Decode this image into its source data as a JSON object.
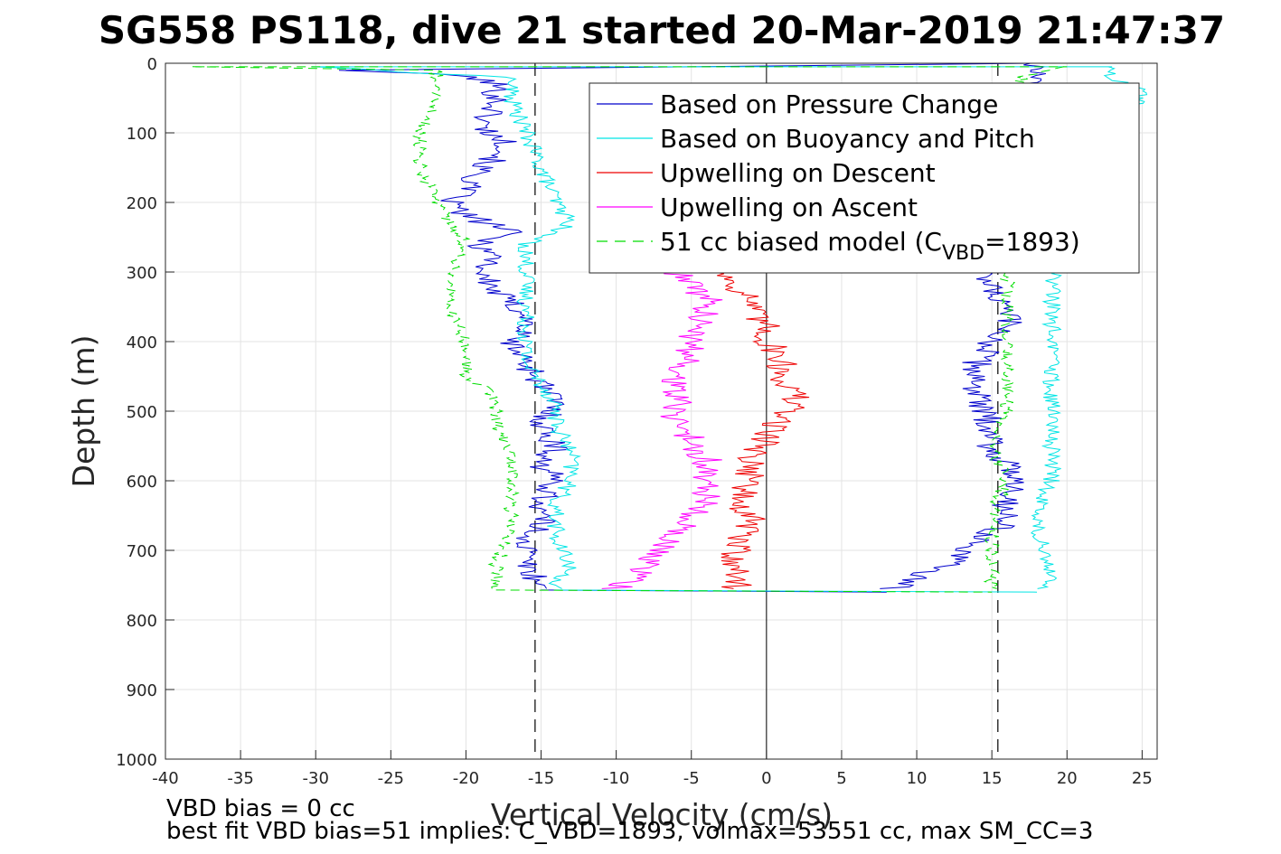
{
  "chart_data": {
    "type": "line",
    "title": "SG558 PS118, dive 21 started 20-Mar-2019 21:47:37",
    "xlabel": "Vertical Velocity (cm/s)",
    "ylabel": "Depth (m)",
    "xlim": [
      -40,
      26
    ],
    "ylim": [
      0,
      1000
    ],
    "y_reversed": true,
    "grid": true,
    "xticks": [
      "-40",
      "-35",
      "-30",
      "-25",
      "-20",
      "-15",
      "-10",
      "-5",
      "0",
      "5",
      "10",
      "15",
      "20",
      "25"
    ],
    "yticks": [
      "0",
      "100",
      "200",
      "300",
      "400",
      "500",
      "600",
      "700",
      "800",
      "900",
      "1000"
    ],
    "legend_position": "top-right",
    "reference_lines": {
      "x": [
        -15.4,
        15.4
      ],
      "zero": 0
    },
    "series": [
      {
        "name": "Based on Pressure Change",
        "color": "#0000cc",
        "style": "solid",
        "descent": [
          [
            -28,
            10
          ],
          [
            -20,
            18
          ],
          [
            -18,
            30
          ],
          [
            -18,
            60
          ],
          [
            -19,
            90
          ],
          [
            -17,
            120
          ],
          [
            -19,
            150
          ],
          [
            -20,
            180
          ],
          [
            -21,
            200
          ],
          [
            -20,
            220
          ],
          [
            -17,
            240
          ],
          [
            -19,
            260
          ],
          [
            -18,
            280
          ],
          [
            -19,
            300
          ],
          [
            -18,
            330
          ],
          [
            -16,
            360
          ],
          [
            -16,
            380
          ],
          [
            -17,
            400
          ],
          [
            -16,
            430
          ],
          [
            -15,
            460
          ],
          [
            -14,
            490
          ],
          [
            -15,
            520
          ],
          [
            -14,
            550
          ],
          [
            -15,
            580
          ],
          [
            -14,
            600
          ],
          [
            -15,
            630
          ],
          [
            -15,
            660
          ],
          [
            -16,
            690
          ],
          [
            -16,
            720
          ],
          [
            -15,
            750
          ],
          [
            -15,
            757
          ]
        ],
        "ascent": [
          [
            18,
            0
          ],
          [
            14,
            300
          ],
          [
            15,
            330
          ],
          [
            16,
            360
          ],
          [
            16,
            380
          ],
          [
            15,
            400
          ],
          [
            14,
            430
          ],
          [
            14,
            460
          ],
          [
            14,
            490
          ],
          [
            15,
            520
          ],
          [
            15,
            550
          ],
          [
            16,
            580
          ],
          [
            17,
            600
          ],
          [
            16,
            630
          ],
          [
            16,
            660
          ],
          [
            13,
            700
          ],
          [
            12,
            720
          ],
          [
            10,
            740
          ],
          [
            8,
            757
          ]
        ]
      },
      {
        "name": "Based on Buoyancy and Pitch",
        "color": "#00e5e5",
        "style": "solid",
        "descent": [
          [
            -30,
            5
          ],
          [
            -22,
            15
          ],
          [
            -17,
            20
          ],
          [
            -17,
            50
          ],
          [
            -16,
            100
          ],
          [
            -15,
            150
          ],
          [
            -14,
            200
          ],
          [
            -13,
            230
          ],
          [
            -16,
            260
          ],
          [
            -16,
            300
          ],
          [
            -16,
            330
          ],
          [
            -16,
            360
          ],
          [
            -16,
            400
          ],
          [
            -16,
            430
          ],
          [
            -15,
            460
          ],
          [
            -14,
            490
          ],
          [
            -14,
            520
          ],
          [
            -13,
            560
          ],
          [
            -13,
            600
          ],
          [
            -14,
            630
          ],
          [
            -14,
            660
          ],
          [
            -14,
            690
          ],
          [
            -13,
            720
          ],
          [
            -14,
            750
          ],
          [
            -14,
            757
          ]
        ],
        "ascent": [
          [
            23,
            5
          ],
          [
            23,
            20
          ],
          [
            25,
            40
          ],
          [
            19,
            300
          ],
          [
            19,
            350
          ],
          [
            19,
            400
          ],
          [
            19,
            450
          ],
          [
            19,
            500
          ],
          [
            19,
            550
          ],
          [
            19,
            600
          ],
          [
            18,
            640
          ],
          [
            18,
            680
          ],
          [
            19,
            720
          ],
          [
            19,
            740
          ],
          [
            18,
            757
          ]
        ]
      },
      {
        "name": "Upwelling on Descent",
        "color": "#ee0000",
        "style": "solid",
        "points": [
          [
            -3,
            300
          ],
          [
            -2,
            320
          ],
          [
            -1,
            340
          ],
          [
            -1,
            360
          ],
          [
            0,
            380
          ],
          [
            0,
            400
          ],
          [
            1,
            420
          ],
          [
            1,
            450
          ],
          [
            2,
            480
          ],
          [
            1,
            510
          ],
          [
            0,
            540
          ],
          [
            -1,
            570
          ],
          [
            -1,
            600
          ],
          [
            -2,
            630
          ],
          [
            -1,
            660
          ],
          [
            -2,
            690
          ],
          [
            -2,
            720
          ],
          [
            -2,
            750
          ],
          [
            -3,
            757
          ]
        ]
      },
      {
        "name": "Upwelling on Ascent",
        "color": "#ff00ff",
        "style": "solid",
        "points": [
          [
            -6,
            300
          ],
          [
            -5,
            320
          ],
          [
            -4,
            340
          ],
          [
            -4,
            360
          ],
          [
            -5,
            380
          ],
          [
            -5,
            400
          ],
          [
            -5,
            420
          ],
          [
            -6,
            450
          ],
          [
            -6,
            480
          ],
          [
            -6,
            510
          ],
          [
            -5,
            540
          ],
          [
            -4,
            570
          ],
          [
            -4,
            600
          ],
          [
            -4,
            630
          ],
          [
            -5,
            660
          ],
          [
            -7,
            690
          ],
          [
            -8,
            720
          ],
          [
            -9,
            740
          ],
          [
            -10,
            757
          ]
        ]
      },
      {
        "name": "51 cc biased model (C_VBD=1893)",
        "legend_main": "51 cc biased model (C",
        "legend_sub": "VBD",
        "legend_tail": "=1893)",
        "color": "#00dd00",
        "style": "dashed",
        "descent": [
          [
            -38,
            5
          ],
          [
            -22,
            10
          ],
          [
            -22,
            50
          ],
          [
            -23,
            100
          ],
          [
            -23,
            150
          ],
          [
            -22,
            200
          ],
          [
            -21,
            230
          ],
          [
            -20,
            260
          ],
          [
            -21,
            300
          ],
          [
            -21,
            350
          ],
          [
            -20,
            400
          ],
          [
            -20,
            450
          ],
          [
            -18,
            480
          ],
          [
            -18,
            520
          ],
          [
            -17,
            560
          ],
          [
            -17,
            600
          ],
          [
            -17,
            640
          ],
          [
            -17,
            680
          ],
          [
            -18,
            720
          ],
          [
            -18,
            750
          ],
          [
            -18,
            757
          ]
        ],
        "ascent": [
          [
            20,
            5
          ],
          [
            17,
            20
          ],
          [
            17,
            40
          ],
          [
            16,
            300
          ],
          [
            16,
            350
          ],
          [
            16,
            400
          ],
          [
            16,
            450
          ],
          [
            16,
            500
          ],
          [
            15,
            550
          ],
          [
            16,
            600
          ],
          [
            15,
            650
          ],
          [
            15,
            700
          ],
          [
            15,
            740
          ],
          [
            15,
            757
          ]
        ]
      }
    ]
  },
  "footer": {
    "line1": "VBD bias = 0 cc",
    "line2": "best fit VBD bias=51 implies: C_VBD=1893, volmax=53551 cc, max SM_CC=3"
  }
}
